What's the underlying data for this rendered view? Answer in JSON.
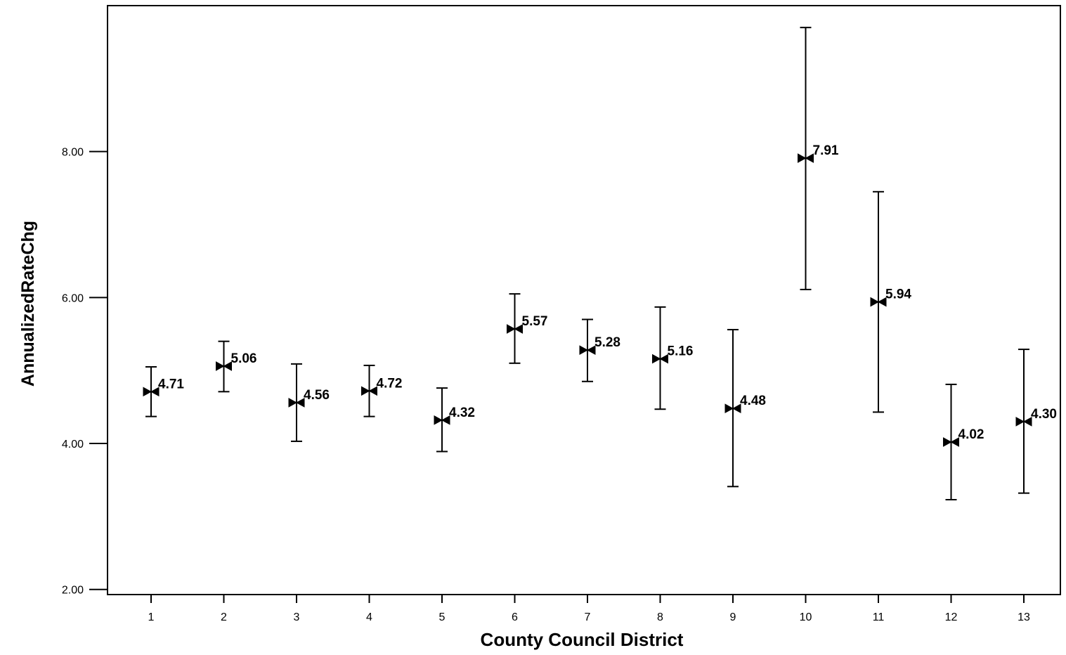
{
  "chart_data": {
    "type": "scatter",
    "subtype": "error-bar",
    "title": "",
    "xlabel": "County Council District",
    "ylabel": "AnnualizedRateChg",
    "categories": [
      "1",
      "2",
      "3",
      "4",
      "5",
      "6",
      "7",
      "8",
      "9",
      "10",
      "11",
      "12",
      "13"
    ],
    "series": [
      {
        "values": [
          4.71,
          5.06,
          4.56,
          4.72,
          4.32,
          5.57,
          5.28,
          5.16,
          4.48,
          7.91,
          5.94,
          4.02,
          4.3
        ],
        "labels": [
          "4.71",
          "5.06",
          "4.56",
          "4.72",
          "4.32",
          "5.57",
          "5.28",
          "5.16",
          "4.48",
          "7.91",
          "5.94",
          "4.02",
          "4.30"
        ],
        "lower": [
          4.37,
          4.71,
          4.03,
          4.37,
          3.89,
          5.1,
          4.85,
          4.47,
          3.41,
          6.11,
          4.43,
          3.23,
          3.32
        ],
        "upper": [
          5.05,
          5.4,
          5.09,
          5.07,
          4.76,
          6.05,
          5.7,
          5.87,
          5.56,
          9.7,
          7.45,
          4.81,
          5.29
        ]
      }
    ],
    "yticks": [
      "2.00",
      "4.00",
      "6.00",
      "8.00"
    ],
    "ylim": [
      1.93,
      10.0
    ],
    "grid": false,
    "legend": "none"
  }
}
